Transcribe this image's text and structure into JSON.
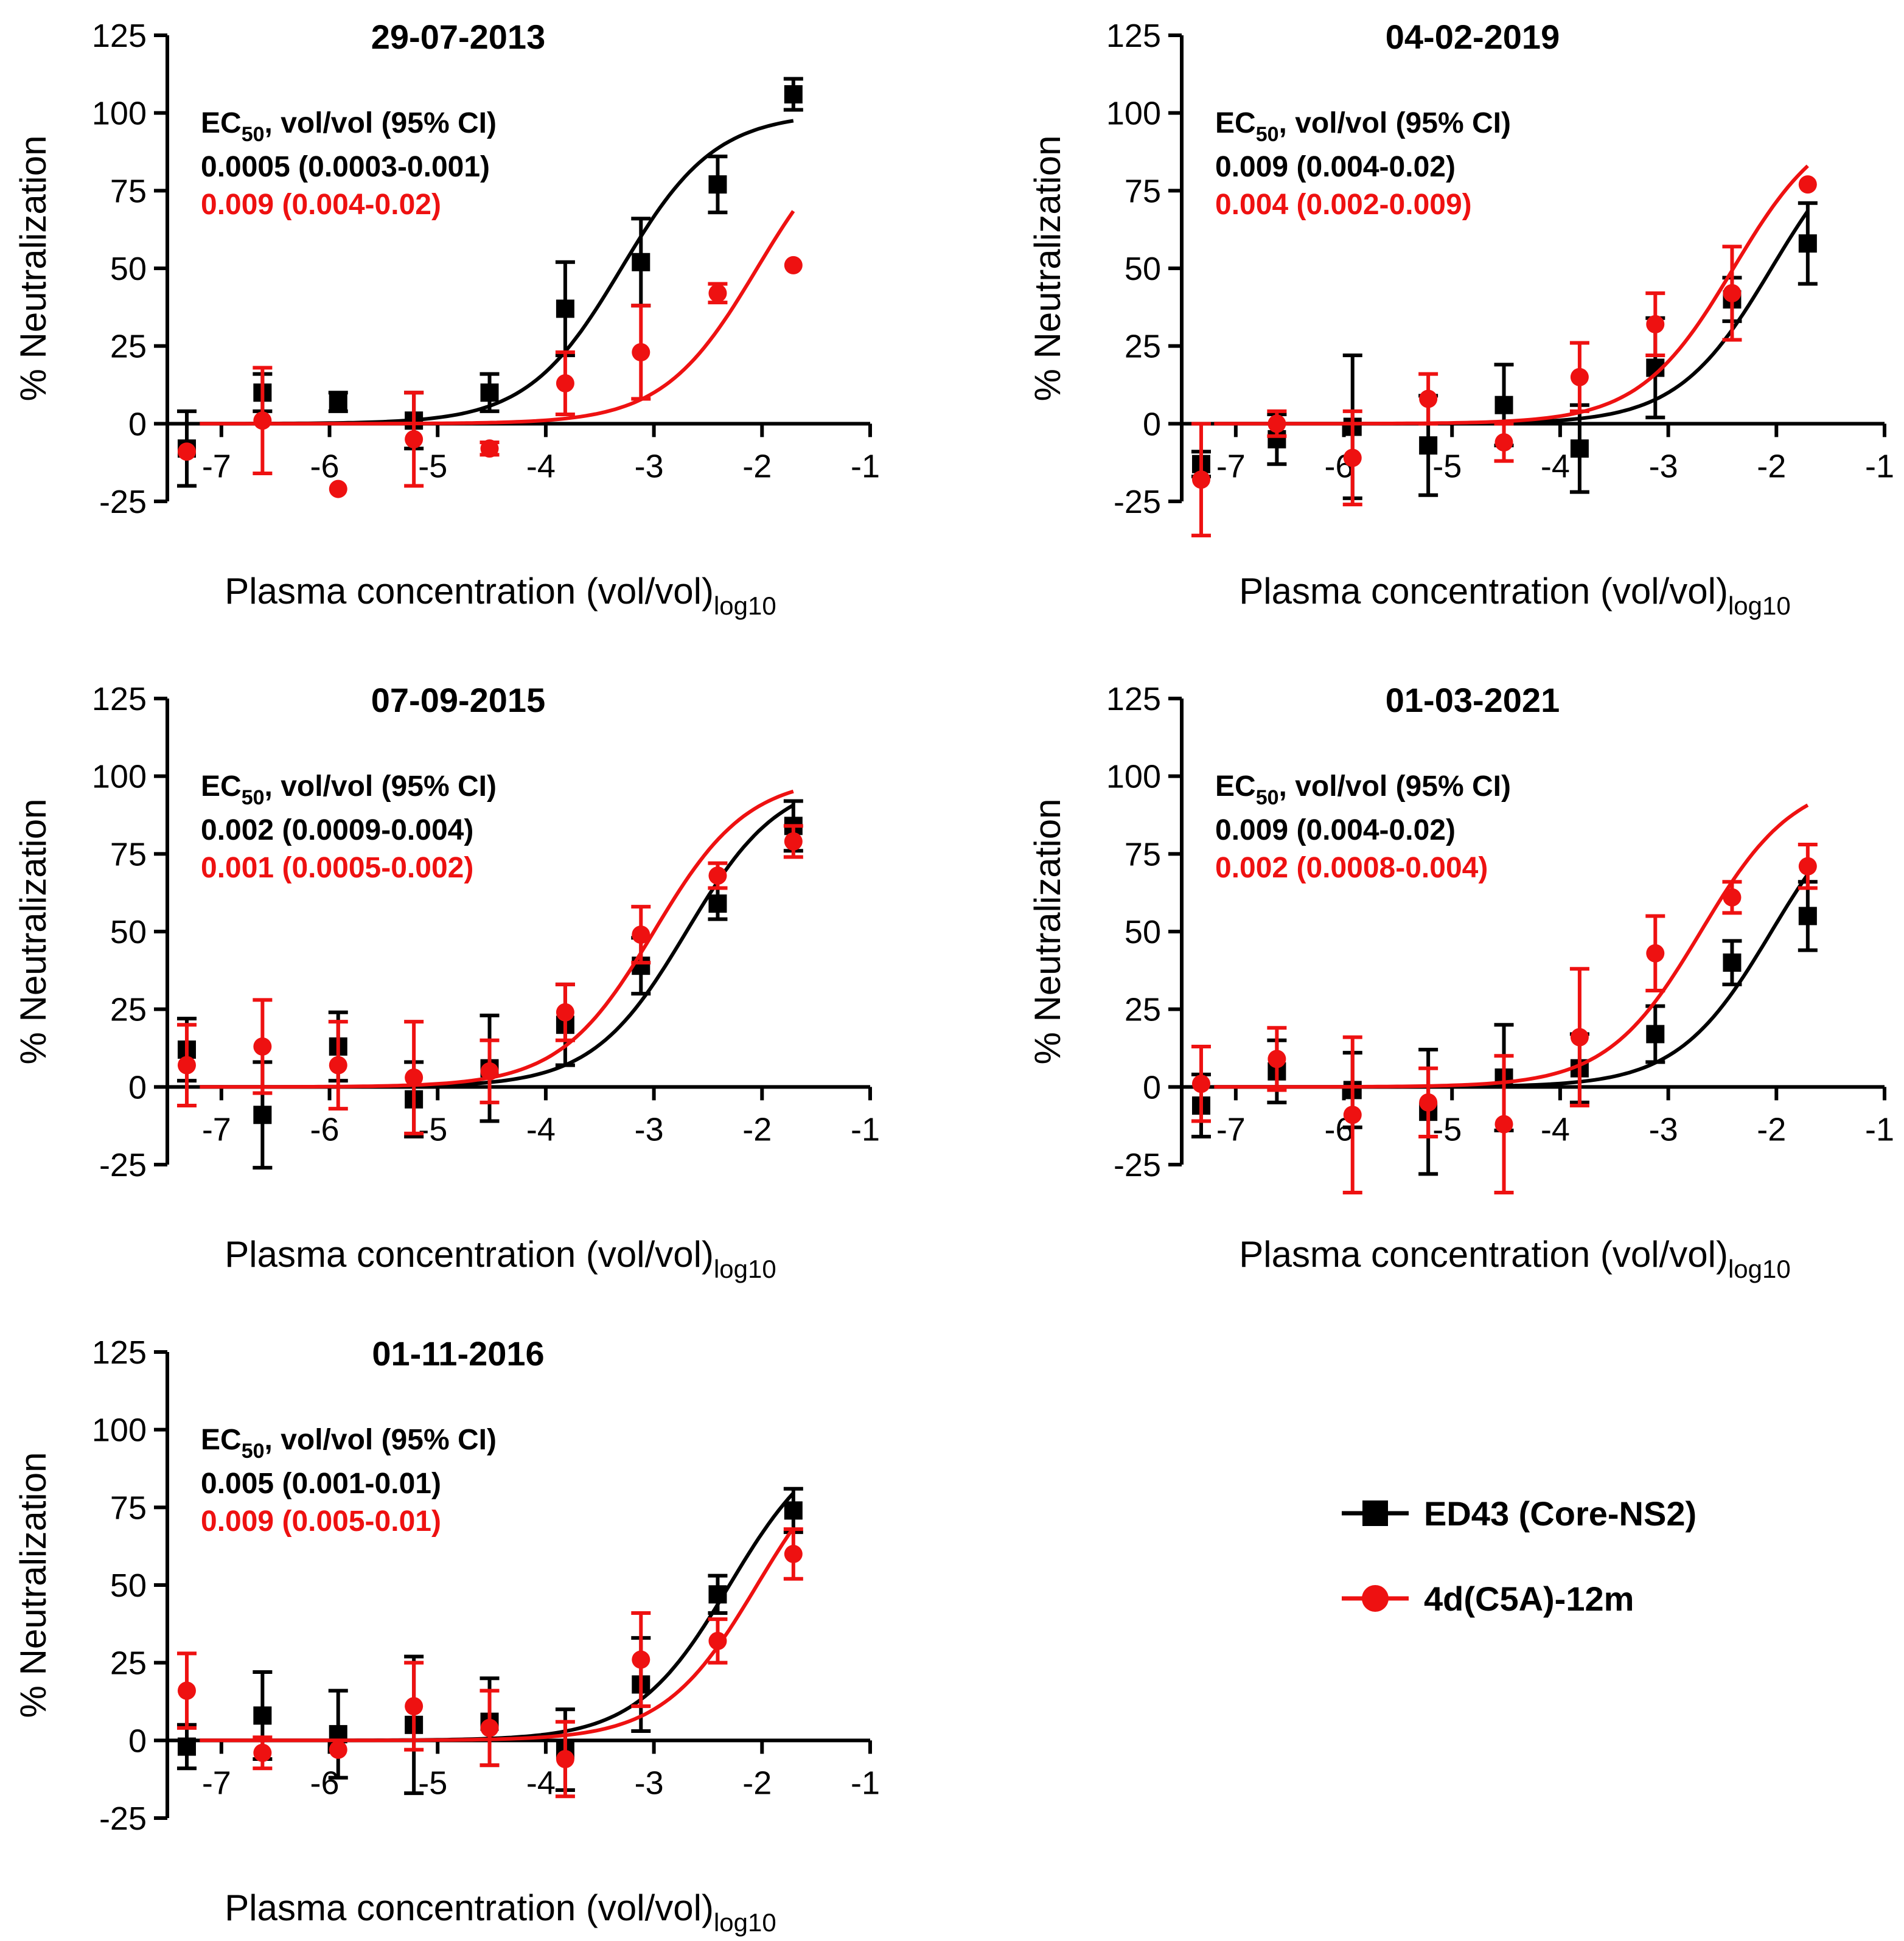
{
  "colors": {
    "s1": "#000000",
    "s2": "#ee1111"
  },
  "legend": {
    "s1_label": "ED43 (Core-NS2)",
    "s2_label": "4d(C5A)-12m"
  },
  "chart_data": [
    {
      "type": "scatter",
      "title": "29-07-2013",
      "xlabel": "Plasma concentration (vol/vol)",
      "xlabel_sub": "log10",
      "ylabel": "% Neutralization",
      "xlim": [
        -7.5,
        -1
      ],
      "ylim": [
        -25,
        125
      ],
      "xticks": [
        -7,
        -6,
        -5,
        -4,
        -3,
        -2,
        -1
      ],
      "yticks": [
        125,
        100,
        75,
        50,
        25,
        0,
        -25
      ],
      "ec50": {
        "header_main": "EC",
        "header_sub": "50",
        "header_rest": ", vol/vol (95% CI)",
        "s1": "0.0005 (0.0003-0.001)",
        "s2": "0.009 (0.004-0.02)"
      },
      "series": [
        {
          "name": "ED43 (Core-NS2)",
          "ec50": 0.0005,
          "top": 100,
          "x": [
            -7.32,
            -6.62,
            -5.92,
            -5.22,
            -4.52,
            -3.82,
            -3.12,
            -2.41,
            -1.71
          ],
          "y": [
            -8,
            10,
            7,
            1,
            10,
            37,
            52,
            77,
            106
          ],
          "err": [
            12,
            6,
            3,
            9,
            6,
            15,
            14,
            9,
            5
          ]
        },
        {
          "name": "4d(C5A)-12m",
          "ec50": 0.009,
          "top": 100,
          "x": [
            -7.32,
            -6.62,
            -5.92,
            -5.22,
            -4.52,
            -3.82,
            -3.12,
            -2.41,
            -1.71
          ],
          "y": [
            -9,
            1,
            -21,
            -5,
            -8,
            13,
            23,
            42,
            51
          ],
          "err": [
            0,
            17,
            0,
            15,
            2,
            10,
            15,
            3,
            0
          ]
        }
      ]
    },
    {
      "type": "scatter",
      "title": "04-02-2019",
      "xlabel": "Plasma concentration (vol/vol)",
      "xlabel_sub": "log10",
      "ylabel": "% Neutralization",
      "xlim": [
        -7.5,
        -1
      ],
      "ylim": [
        -25,
        125
      ],
      "xticks": [
        -7,
        -6,
        -5,
        -4,
        -3,
        -2,
        -1
      ],
      "yticks": [
        125,
        100,
        75,
        50,
        25,
        0,
        -25
      ],
      "ec50": {
        "header_main": "EC",
        "header_sub": "50",
        "header_rest": ", vol/vol (95% CI)",
        "s1": "0.009 (0.004-0.02)",
        "s2": "0.004 (0.002-0.009)"
      },
      "series": [
        {
          "name": "ED43 (Core-NS2)",
          "ec50": 0.009,
          "top": 100,
          "x": [
            -7.32,
            -6.62,
            -5.92,
            -5.22,
            -4.52,
            -3.82,
            -3.12,
            -2.41,
            -1.71
          ],
          "y": [
            -13,
            -5,
            -1,
            -7,
            6,
            -8,
            18,
            40,
            58
          ],
          "err": [
            4,
            8,
            23,
            16,
            13,
            14,
            16,
            7,
            13
          ]
        },
        {
          "name": "4d(C5A)-12m",
          "ec50": 0.004,
          "top": 100,
          "x": [
            -7.32,
            -6.62,
            -5.92,
            -5.22,
            -4.52,
            -3.82,
            -3.12,
            -2.41,
            -1.71
          ],
          "y": [
            -18,
            0,
            -11,
            8,
            -6,
            15,
            32,
            42,
            77
          ],
          "err": [
            18,
            4,
            15,
            8,
            6,
            11,
            10,
            15,
            0
          ]
        }
      ]
    },
    {
      "type": "scatter",
      "title": "07-09-2015",
      "xlabel": "Plasma concentration (vol/vol)",
      "xlabel_sub": "log10",
      "ylabel": "% Neutralization",
      "xlim": [
        -7.5,
        -1
      ],
      "ylim": [
        -25,
        125
      ],
      "xticks": [
        -7,
        -6,
        -5,
        -4,
        -3,
        -2,
        -1
      ],
      "yticks": [
        125,
        100,
        75,
        50,
        25,
        0,
        -25
      ],
      "ec50": {
        "header_main": "EC",
        "header_sub": "50",
        "header_rest": ", vol/vol (95% CI)",
        "s1": "0.002 (0.0009-0.004)",
        "s2": "0.001 (0.0005-0.002)"
      },
      "series": [
        {
          "name": "ED43 (Core-NS2)",
          "ec50": 0.002,
          "top": 100,
          "x": [
            -7.32,
            -6.62,
            -5.92,
            -5.22,
            -4.52,
            -3.82,
            -3.12,
            -2.41,
            -1.71
          ],
          "y": [
            12,
            -9,
            13,
            -4,
            6,
            20,
            39,
            59,
            84
          ],
          "err": [
            10,
            17,
            11,
            12,
            17,
            13,
            9,
            5,
            8
          ]
        },
        {
          "name": "4d(C5A)-12m",
          "ec50": 0.001,
          "top": 100,
          "x": [
            -7.32,
            -6.62,
            -5.92,
            -5.22,
            -4.52,
            -3.82,
            -3.12,
            -2.41,
            -1.71
          ],
          "y": [
            7,
            13,
            7,
            3,
            5,
            24,
            49,
            68,
            79
          ],
          "err": [
            13,
            15,
            14,
            18,
            10,
            9,
            9,
            4,
            5
          ]
        }
      ]
    },
    {
      "type": "scatter",
      "title": "01-03-2021",
      "xlabel": "Plasma concentration (vol/vol)",
      "xlabel_sub": "log10",
      "ylabel": "% Neutralization",
      "xlim": [
        -7.5,
        -1
      ],
      "ylim": [
        -25,
        125
      ],
      "xticks": [
        -7,
        -6,
        -5,
        -4,
        -3,
        -2,
        -1
      ],
      "yticks": [
        125,
        100,
        75,
        50,
        25,
        0,
        -25
      ],
      "ec50": {
        "header_main": "EC",
        "header_sub": "50",
        "header_rest": ", vol/vol (95% CI)",
        "s1": "0.009 (0.004-0.02)",
        "s2": "0.002 (0.0008-0.004)"
      },
      "series": [
        {
          "name": "ED43 (Core-NS2)",
          "ec50": 0.009,
          "top": 100,
          "x": [
            -7.32,
            -6.62,
            -5.92,
            -5.22,
            -4.52,
            -3.82,
            -3.12,
            -2.41,
            -1.71
          ],
          "y": [
            -6,
            5,
            -1,
            -8,
            3,
            6,
            17,
            40,
            55
          ],
          "err": [
            10,
            10,
            12,
            20,
            17,
            11,
            9,
            7,
            11
          ]
        },
        {
          "name": "4d(C5A)-12m",
          "ec50": 0.002,
          "top": 100,
          "x": [
            -7.32,
            -6.62,
            -5.92,
            -5.22,
            -4.52,
            -3.82,
            -3.12,
            -2.41,
            -1.71
          ],
          "y": [
            1,
            9,
            -9,
            -5,
            -12,
            16,
            43,
            61,
            71
          ],
          "err": [
            12,
            10,
            25,
            11,
            22,
            22,
            12,
            5,
            7
          ]
        }
      ]
    },
    {
      "type": "scatter",
      "title": "01-11-2016",
      "xlabel": "Plasma concentration (vol/vol)",
      "xlabel_sub": "log10",
      "ylabel": "% Neutralization",
      "xlim": [
        -7.5,
        -1
      ],
      "ylim": [
        -25,
        125
      ],
      "xticks": [
        -7,
        -6,
        -5,
        -4,
        -3,
        -2,
        -1
      ],
      "yticks": [
        125,
        100,
        75,
        50,
        25,
        0,
        -25
      ],
      "ec50": {
        "header_main": "EC",
        "header_sub": "50",
        "header_rest": ", vol/vol (95% CI)",
        "s1": "0.005 (0.001-0.01)",
        "s2": "0.009 (0.005-0.01)"
      },
      "series": [
        {
          "name": "ED43 (Core-NS2)",
          "ec50": 0.005,
          "top": 100,
          "x": [
            -7.32,
            -6.62,
            -5.92,
            -5.22,
            -4.52,
            -3.82,
            -3.12,
            -2.41,
            -1.71
          ],
          "y": [
            -2,
            8,
            2,
            5,
            6,
            -3,
            18,
            47,
            74
          ],
          "err": [
            7,
            14,
            14,
            22,
            14,
            13,
            15,
            6,
            7
          ]
        },
        {
          "name": "4d(C5A)-12m",
          "ec50": 0.009,
          "top": 100,
          "x": [
            -7.32,
            -6.62,
            -5.92,
            -5.22,
            -4.52,
            -3.82,
            -3.12,
            -2.41,
            -1.71
          ],
          "y": [
            16,
            -4,
            -3,
            11,
            4,
            -6,
            26,
            32,
            60
          ],
          "err": [
            12,
            5,
            0,
            14,
            12,
            12,
            15,
            7,
            8
          ]
        }
      ]
    }
  ]
}
